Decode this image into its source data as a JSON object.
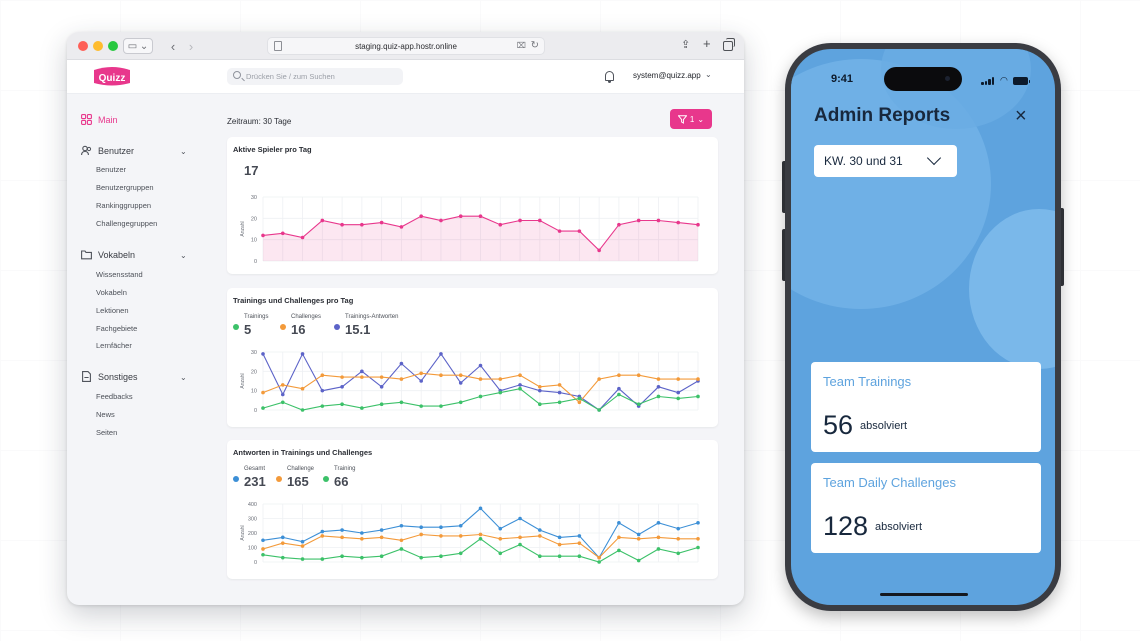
{
  "browser": {
    "url": "staging.quiz-app.hostr.online",
    "search_placeholder": "Drücken Sie / zum Suchen",
    "user": "system@quizz.app",
    "logo_text": "Quizz"
  },
  "sidebar": {
    "main": "Main",
    "sections": [
      {
        "label": "Benutzer",
        "items": [
          "Benutzer",
          "Benutzergruppen",
          "Rankinggruppen",
          "Challengegruppen"
        ]
      },
      {
        "label": "Vokabeln",
        "items": [
          "Wissensstand",
          "Vokabeln",
          "Lektionen",
          "Fachgebiete",
          "Lernfächer"
        ]
      },
      {
        "label": "Sonstiges",
        "items": [
          "Feedbacks",
          "News",
          "Seiten"
        ]
      }
    ]
  },
  "main": {
    "zeitraum": "Zeitraum: 30 Tage",
    "filter_count": "1"
  },
  "colors": {
    "pink": "#e8378c",
    "green": "#3cc169",
    "orange": "#f39a3a",
    "purple": "#5c63c8",
    "blue": "#3c8fd6",
    "phone_bg": "#5ea3de"
  },
  "chart_data": [
    {
      "type": "area",
      "title": "Aktive Spieler pro Tag",
      "kpi": "17",
      "ylabel": "Anzahl",
      "ylim": [
        0,
        30
      ],
      "yticks": [
        0,
        10,
        20,
        30
      ],
      "series": [
        {
          "color": "#e8378c",
          "values": [
            12,
            13,
            11,
            19,
            17,
            17,
            18,
            16,
            21,
            19,
            21,
            21,
            17,
            19,
            19,
            14,
            14,
            5,
            17,
            19,
            19,
            18,
            17
          ]
        }
      ]
    },
    {
      "type": "line",
      "title": "Trainings und Challenges pro Tag",
      "ylabel": "Anzahl",
      "ylim": [
        0,
        30
      ],
      "yticks": [
        0,
        10,
        20,
        30
      ],
      "stats": [
        {
          "label": "Trainings",
          "value": "5",
          "color": "#3cc169"
        },
        {
          "label": "Challenges",
          "value": "16",
          "color": "#f39a3a"
        },
        {
          "label": "Trainings-Antworten",
          "value": "15.1",
          "color": "#5c63c8"
        }
      ],
      "series": [
        {
          "name": "Trainings-Antworten",
          "color": "#5c63c8",
          "values": [
            29,
            8,
            29,
            10,
            12,
            20,
            12,
            24,
            15,
            29,
            14,
            23,
            10,
            13,
            10,
            9,
            7,
            0,
            11,
            2,
            12,
            9,
            15
          ]
        },
        {
          "name": "Challenges",
          "color": "#f39a3a",
          "values": [
            9,
            13,
            11,
            18,
            17,
            17,
            17,
            16,
            19,
            18,
            18,
            16,
            16,
            18,
            12,
            13,
            4,
            16,
            18,
            18,
            16,
            16,
            16
          ]
        },
        {
          "name": "Trainings",
          "color": "#3cc169",
          "values": [
            1,
            4,
            0,
            2,
            3,
            1,
            3,
            4,
            2,
            2,
            4,
            7,
            9,
            11,
            3,
            4,
            6,
            0,
            8,
            3,
            7,
            6,
            7
          ]
        }
      ]
    },
    {
      "type": "line",
      "title": "Antworten in Trainings und Challenges",
      "ylabel": "Anzahl",
      "ylim": [
        0,
        400
      ],
      "yticks": [
        0,
        100,
        200,
        300,
        400
      ],
      "stats": [
        {
          "label": "Gesamt",
          "value": "231",
          "color": "#3c8fd6"
        },
        {
          "label": "Challenge",
          "value": "165",
          "color": "#f39a3a"
        },
        {
          "label": "Training",
          "value": "66",
          "color": "#3cc169"
        }
      ],
      "series": [
        {
          "name": "Gesamt",
          "color": "#3c8fd6",
          "values": [
            150,
            170,
            140,
            210,
            220,
            200,
            220,
            250,
            240,
            240,
            250,
            370,
            230,
            300,
            220,
            170,
            180,
            30,
            270,
            190,
            270,
            230,
            270
          ]
        },
        {
          "name": "Challenge",
          "color": "#f39a3a",
          "values": [
            90,
            130,
            110,
            180,
            170,
            160,
            170,
            150,
            190,
            180,
            180,
            190,
            160,
            170,
            180,
            120,
            130,
            30,
            170,
            160,
            170,
            160,
            160
          ]
        },
        {
          "name": "Training",
          "color": "#3cc169",
          "values": [
            50,
            30,
            20,
            20,
            40,
            30,
            40,
            90,
            30,
            40,
            60,
            160,
            60,
            120,
            40,
            40,
            40,
            -10,
            80,
            10,
            90,
            60,
            100
          ]
        }
      ]
    }
  ],
  "phone": {
    "time": "9:41",
    "title": "Admin Reports",
    "close": "×",
    "select_value": "KW. 30 und 31",
    "cards": [
      {
        "title": "Team Trainings",
        "value": "56",
        "unit": "absolviert"
      },
      {
        "title": "Team Daily Challenges",
        "value": "128",
        "unit": "absolviert"
      }
    ]
  }
}
